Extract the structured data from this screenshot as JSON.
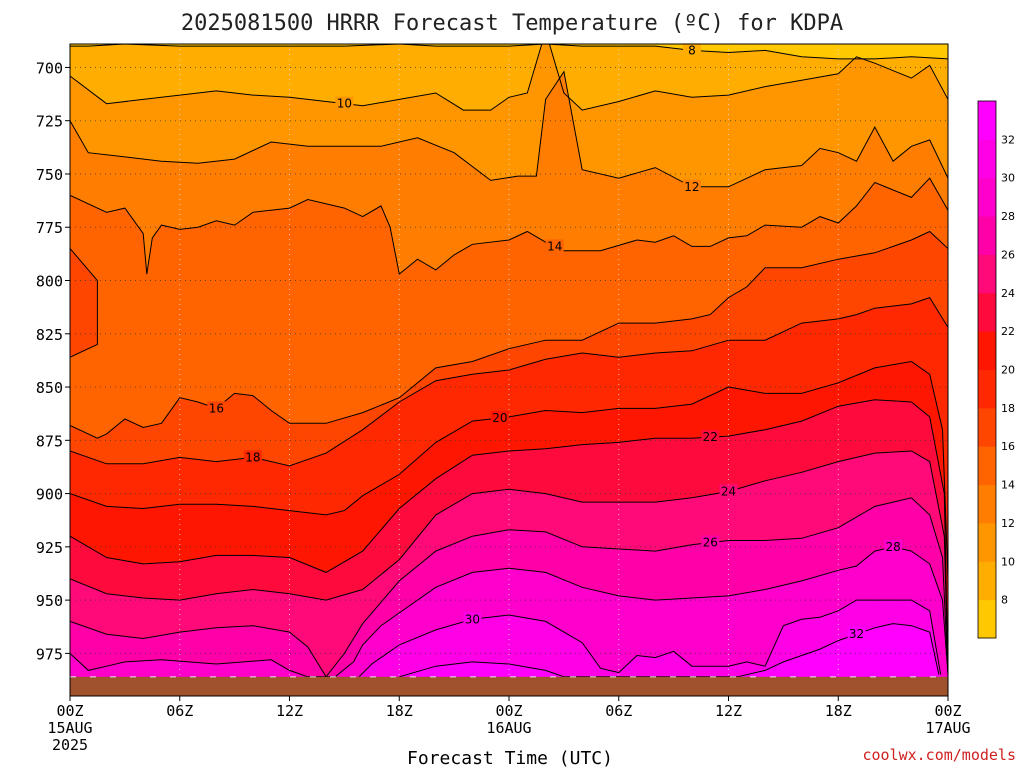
{
  "chart_data": {
    "type": "heatmap",
    "title": "2025081500 HRRR Forecast Temperature (ºC) for KDPA",
    "xlabel": "Forecast Time (UTC)",
    "ylabel": "",
    "credit": "coolwx.com/models",
    "x_ticks": [
      {
        "hour": 0,
        "line1": "00Z",
        "line2": "15AUG",
        "line3": "2025"
      },
      {
        "hour": 6,
        "line1": "06Z",
        "line2": "",
        "line3": ""
      },
      {
        "hour": 12,
        "line1": "12Z",
        "line2": "",
        "line3": ""
      },
      {
        "hour": 18,
        "line1": "18Z",
        "line2": "",
        "line3": ""
      },
      {
        "hour": 24,
        "line1": "00Z",
        "line2": "16AUG",
        "line3": ""
      },
      {
        "hour": 30,
        "line1": "06Z",
        "line2": "",
        "line3": ""
      },
      {
        "hour": 36,
        "line1": "12Z",
        "line2": "",
        "line3": ""
      },
      {
        "hour": 42,
        "line1": "18Z",
        "line2": "",
        "line3": ""
      },
      {
        "hour": 48,
        "line1": "00Z",
        "line2": "17AUG",
        "line3": ""
      }
    ],
    "xlim": [
      0,
      48
    ],
    "y_ticks": [
      700,
      725,
      750,
      775,
      800,
      825,
      850,
      875,
      900,
      925,
      950,
      975
    ],
    "ylim_pressure_hpa": [
      689,
      995
    ],
    "y_inverted": true,
    "grid": true,
    "surface_pressure_hpa": 986,
    "colorbar": {
      "levels": [
        6,
        8,
        10,
        12,
        14,
        16,
        18,
        20,
        22,
        24,
        26,
        28,
        30,
        32,
        34
      ],
      "labels": [
        8,
        10,
        12,
        14,
        16,
        18,
        20,
        22,
        24,
        26,
        28,
        30,
        32
      ],
      "colors": [
        "#ffc800",
        "#ffad00",
        "#ff9600",
        "#ff7d00",
        "#ff6400",
        "#ff4600",
        "#ff2800",
        "#ff1600",
        "#ff0a3c",
        "#ff0a78",
        "#ff00a8",
        "#ff00cc",
        "#ff00e6",
        "#ff00ff"
      ]
    },
    "isotherms": [
      {
        "temp": 8,
        "label_hour": 34,
        "x": [
          0,
          1,
          3,
          6,
          9,
          12,
          15,
          18,
          20,
          22,
          24,
          26,
          28,
          30,
          32,
          34,
          36,
          38,
          40,
          42,
          44,
          46,
          48
        ],
        "y": [
          690,
          690,
          689,
          690,
          690,
          690,
          690,
          689,
          690,
          690,
          690,
          689,
          690,
          690,
          690,
          692,
          693,
          692,
          695,
          696,
          696,
          695,
          696
        ]
      },
      {
        "temp": 10,
        "label_hour": 15,
        "x": [
          0,
          2,
          4,
          6,
          8,
          10,
          12,
          14,
          16,
          18,
          20,
          21.5,
          23,
          24,
          25,
          26,
          27,
          28,
          30,
          32,
          34,
          36,
          38,
          40,
          42,
          43,
          44,
          46,
          47,
          48
        ],
        "y": [
          704,
          717,
          715,
          713,
          711,
          713,
          714,
          716,
          718,
          715,
          712,
          720,
          720,
          714,
          712,
          683,
          712,
          720,
          716,
          711,
          714,
          713,
          709,
          706,
          703,
          695,
          698,
          705,
          699,
          715
        ]
      },
      {
        "temp": 12,
        "label_hour": 34,
        "x": [
          0,
          1,
          3,
          5,
          7,
          9,
          11,
          13,
          15,
          17,
          19,
          21,
          23,
          24.5,
          25.5,
          26,
          27,
          28,
          30,
          32,
          34,
          36,
          38,
          40,
          41,
          42,
          43,
          44,
          45,
          46,
          47,
          48
        ],
        "y": [
          725,
          740,
          742,
          744,
          745,
          743,
          735,
          737,
          737,
          737,
          733,
          740,
          753,
          751,
          751,
          715,
          702,
          748,
          752,
          747,
          756,
          756,
          748,
          746,
          738,
          740,
          744,
          728,
          744,
          737,
          734,
          752
        ]
      },
      {
        "temp": 14,
        "label_hour": 26.5,
        "x": [
          0,
          2,
          3,
          4,
          4.2,
          4.5,
          5,
          6,
          7,
          8,
          9,
          10,
          12,
          13,
          15,
          16,
          17,
          17.5,
          18,
          19,
          20,
          21,
          22,
          24,
          25,
          26,
          27,
          29,
          31,
          32,
          33,
          34,
          35,
          36,
          37,
          38,
          40,
          41,
          42,
          43,
          44,
          46,
          47,
          48
        ],
        "y": [
          760,
          768,
          766,
          778,
          797,
          780,
          774,
          776,
          775,
          772,
          774,
          768,
          766,
          762,
          766,
          770,
          765,
          775,
          797,
          790,
          795,
          788,
          783,
          781,
          777,
          782,
          786,
          786,
          781,
          782,
          779,
          784,
          784,
          780,
          779,
          774,
          775,
          770,
          773,
          765,
          754,
          761,
          752,
          767
        ]
      },
      {
        "temp": 16,
        "label_hour": 8,
        "x": [
          0,
          1.5,
          1.5,
          0,
          0,
          1.5,
          2,
          3,
          4,
          5,
          6,
          7,
          8,
          9,
          10,
          11,
          12,
          14,
          16,
          18,
          20,
          22,
          24,
          26,
          28,
          30,
          32,
          34,
          35,
          36,
          37,
          38,
          40,
          42,
          44,
          46,
          47,
          48
        ],
        "y": [
          785,
          800,
          830,
          836,
          868,
          874,
          872,
          865,
          869,
          867,
          855,
          857,
          860,
          853,
          854,
          861,
          867,
          867,
          862,
          855,
          841,
          838,
          832,
          828,
          828,
          820,
          820,
          818,
          816,
          808,
          803,
          794,
          794,
          790,
          787,
          781,
          777,
          785
        ]
      },
      {
        "temp": 18,
        "label_hour": 10,
        "x": [
          0,
          2,
          4,
          6,
          8,
          10,
          12,
          14,
          16,
          18,
          20,
          22,
          24,
          26,
          28,
          30,
          32,
          34,
          36,
          38,
          40,
          42,
          43,
          44,
          46,
          47,
          48
        ],
        "y": [
          880,
          886,
          886,
          883,
          885,
          883,
          887,
          881,
          870,
          857,
          847,
          844,
          842,
          837,
          834,
          836,
          834,
          833,
          828,
          828,
          820,
          818,
          816,
          813,
          811,
          808,
          822
        ]
      },
      {
        "temp": 20,
        "label_hour": 23.5,
        "x": [
          0,
          2,
          4,
          6,
          8,
          10,
          12,
          14,
          15,
          16,
          18,
          20,
          22,
          24,
          26,
          28,
          30,
          32,
          34,
          36,
          38,
          40,
          42,
          44,
          46,
          47,
          47.7,
          48,
          48
        ],
        "y": [
          900,
          906,
          907,
          905,
          905,
          906,
          908,
          910,
          908,
          901,
          891,
          876,
          866,
          864,
          861,
          862,
          860,
          860,
          858,
          850,
          853,
          853,
          848,
          841,
          838,
          844,
          870,
          940,
          985
        ]
      },
      {
        "temp": 22,
        "label_hour": 35,
        "x": [
          0,
          2,
          4,
          6,
          8,
          10,
          12,
          14,
          16,
          18,
          20,
          22,
          24,
          26,
          28,
          30,
          32,
          34,
          36,
          38,
          40,
          42,
          44,
          46,
          47,
          47.8,
          48
        ],
        "y": [
          920,
          930,
          933,
          932,
          929,
          929,
          930,
          937,
          927,
          907,
          893,
          882,
          880,
          879,
          877,
          876,
          874,
          874,
          873,
          870,
          866,
          859,
          856,
          857,
          864,
          900,
          985
        ]
      },
      {
        "temp": 24,
        "label_hour": 36,
        "x": [
          0,
          2,
          4,
          6,
          8,
          10,
          12,
          14,
          16,
          18,
          20,
          22,
          24,
          26,
          28,
          30,
          32,
          34,
          36,
          38,
          40,
          42,
          44,
          46,
          47,
          47.8,
          48
        ],
        "y": [
          940,
          947,
          949,
          950,
          947,
          945,
          947,
          950,
          945,
          931,
          910,
          900,
          898,
          900,
          904,
          904,
          904,
          902,
          899,
          894,
          890,
          885,
          881,
          880,
          885,
          920,
          985
        ]
      },
      {
        "temp": 26,
        "label_hour": 35,
        "x": [
          0,
          2,
          4,
          6,
          8,
          10,
          12,
          13,
          14,
          15,
          16,
          18,
          20,
          22,
          24,
          26,
          28,
          30,
          32,
          34,
          36,
          38,
          40,
          42,
          44,
          46,
          47,
          47.7,
          48
        ],
        "y": [
          960,
          966,
          968,
          965,
          963,
          962,
          965,
          972,
          986,
          975,
          961,
          941,
          927,
          920,
          917,
          918,
          925,
          926,
          927,
          924,
          922,
          922,
          921,
          916,
          906,
          902,
          910,
          930,
          985
        ]
      },
      {
        "temp": 28,
        "label_hour": 45,
        "x": [
          0,
          1,
          2,
          3,
          5,
          8,
          11,
          12,
          13,
          14.5,
          15.5,
          16,
          17,
          18,
          20,
          22,
          24,
          26,
          28,
          30,
          32,
          34,
          36,
          38,
          40,
          42,
          43,
          44,
          45,
          46,
          47,
          47.7,
          48
        ],
        "y": [
          975,
          983,
          981,
          979,
          978,
          980,
          978,
          983,
          986,
          986,
          979,
          971,
          962,
          956,
          944,
          937,
          935,
          937,
          944,
          948,
          950,
          949,
          948,
          945,
          941,
          936,
          934,
          927,
          925,
          927,
          933,
          950,
          985
        ]
      },
      {
        "temp": 30,
        "label_hour": 22,
        "x": [
          15.8,
          16.5,
          18,
          20,
          22,
          24,
          26,
          28,
          29,
          30,
          31,
          32,
          33,
          34,
          35,
          36,
          37,
          38,
          39,
          40,
          41,
          42,
          43,
          44,
          45,
          46,
          47,
          47.6
        ],
        "y": [
          986,
          980,
          971,
          964,
          959,
          957,
          960,
          970,
          982,
          984,
          976,
          977,
          974,
          981,
          981,
          981,
          979,
          981,
          962,
          959,
          958,
          955,
          950,
          950,
          950,
          950,
          955,
          985
        ]
      },
      {
        "temp": 32,
        "label_hour": 43,
        "x": [
          18,
          20,
          22,
          24,
          26,
          27,
          36.5,
          38,
          39,
          40,
          41,
          42,
          43,
          44,
          45,
          46,
          47,
          47.5
        ],
        "y": [
          986,
          981,
          979,
          980,
          983,
          986,
          986,
          983,
          979,
          976,
          973,
          969,
          966,
          963,
          961,
          962,
          965,
          985
        ]
      }
    ]
  }
}
